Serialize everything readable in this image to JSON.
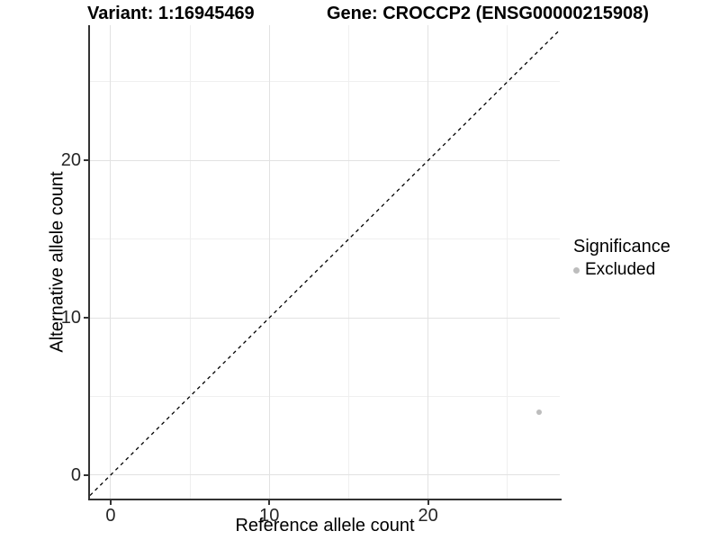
{
  "chart_data": {
    "type": "scatter",
    "title_left": "Variant: 1:16945469",
    "title_right": "Gene: CROCCP2 (ENSG00000215908)",
    "xlabel": "Reference allele count",
    "ylabel": "Alternative allele count",
    "xlim": [
      -1.3,
      28.3
    ],
    "ylim": [
      -1.5,
      28.6
    ],
    "x_ticks": [
      0,
      10,
      20
    ],
    "y_ticks": [
      0,
      10,
      20
    ],
    "x_minor_gridlines": [
      5,
      15,
      25
    ],
    "y_minor_gridlines": [
      5,
      15,
      25
    ],
    "grid": "on",
    "reference_line": {
      "slope": 1,
      "intercept": 0,
      "style": "dashed",
      "color": "#000000"
    },
    "points": [
      {
        "x": 27,
        "y": 4,
        "series": "Excluded"
      }
    ],
    "series": [
      {
        "name": "Excluded",
        "color": "#bdbdbd"
      }
    ],
    "legend": {
      "position": "right",
      "title": "Significance",
      "items": [
        {
          "label": "Excluded",
          "color": "#bdbdbd"
        }
      ]
    }
  },
  "colors": {
    "background": "#ffffff",
    "axis_line": "#333333",
    "grid_major": "#e2e2e2",
    "grid_minor": "#efefef",
    "tick_text": "#262626",
    "title_text": "#000000",
    "excluded_point": "#bdbdbd",
    "reference_line": "#000000"
  }
}
